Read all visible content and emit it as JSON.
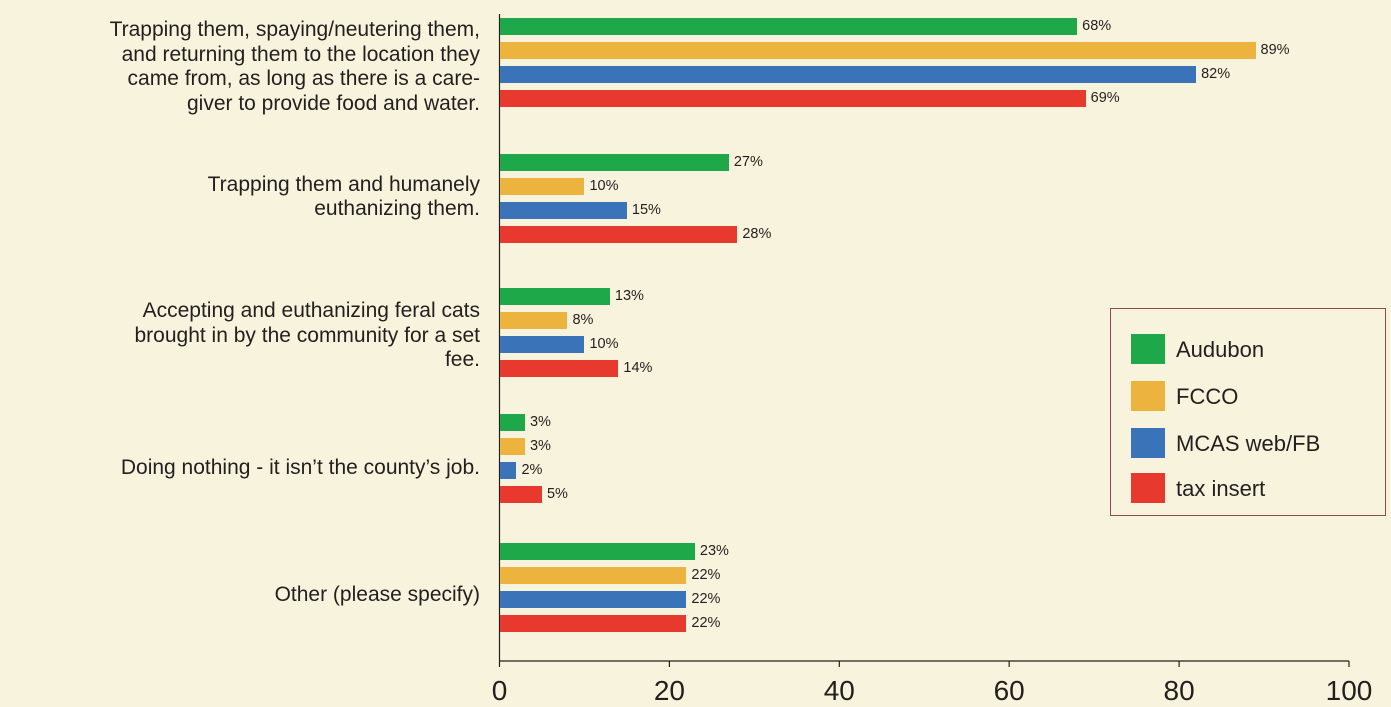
{
  "chart_data": {
    "type": "bar",
    "orientation": "horizontal",
    "categories": [
      "Trapping them, spaying/neutering them, and returning them to the location they came from, as long as there is a care-giver to provide food and water.",
      "Trapping them and humanely euthanizing them.",
      "Accepting and euthanizing feral cats brought in by the community for a set fee.",
      "Doing nothing - it isn’t the county’s job.",
      "Other (please specify)"
    ],
    "category_lines": [
      [
        "Trapping them, spaying/neutering them,",
        "and returning them to the location they",
        "came from, as long as there is a care-",
        "giver to provide food and water."
      ],
      [
        "Trapping them and humanely",
        "euthanizing them."
      ],
      [
        "Accepting and euthanizing feral cats",
        "brought in by the community for a set",
        "fee."
      ],
      [
        "Doing nothing - it isn’t the county’s job."
      ],
      [
        "Other (please specify)"
      ]
    ],
    "series": [
      {
        "name": "Audubon",
        "color": "#1ea84a",
        "values": [
          68,
          27,
          13,
          3,
          23
        ]
      },
      {
        "name": "FCCO",
        "color": "#ecb43f",
        "values": [
          89,
          10,
          8,
          3,
          22
        ]
      },
      {
        "name": "MCAS web/FB",
        "color": "#3b73b9",
        "values": [
          82,
          15,
          10,
          2,
          22
        ]
      },
      {
        "name": "tax insert",
        "color": "#e8392f",
        "values": [
          69,
          28,
          14,
          5,
          22
        ]
      }
    ],
    "value_suffix": "%",
    "xlim": [
      0,
      100
    ],
    "xticks": [
      0,
      20,
      40,
      60,
      80,
      100
    ],
    "grid": false,
    "legend_position": "right"
  }
}
